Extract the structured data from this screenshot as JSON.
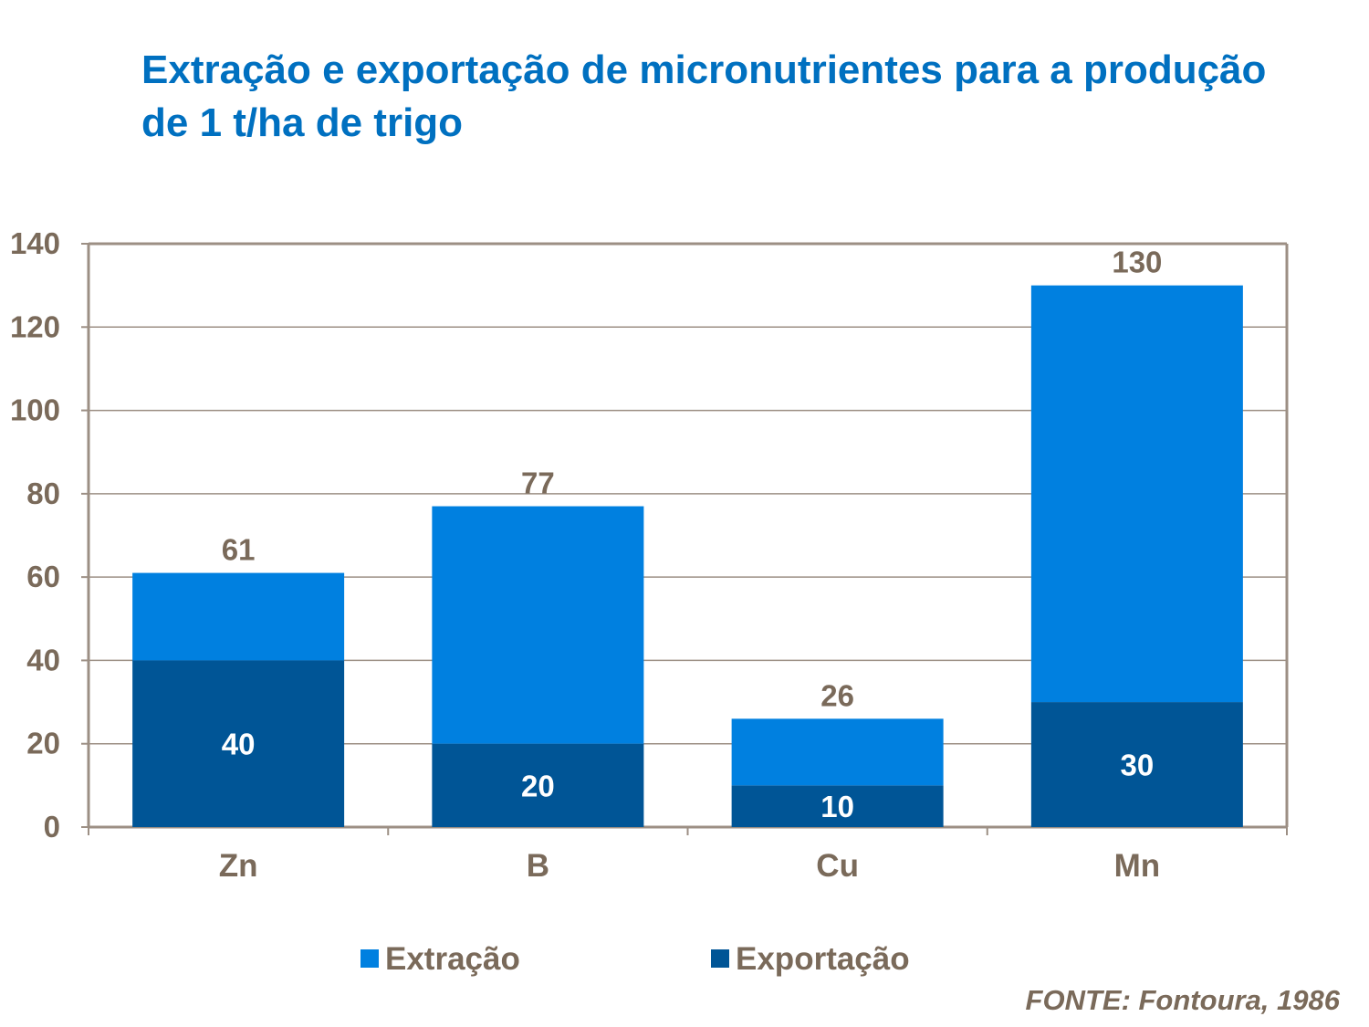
{
  "title": "Extração e exportação de micronutrientes para a produção de 1 t/ha de trigo",
  "source": "FONTE: Fontoura, 1986",
  "colors": {
    "extracao": "#0080e0",
    "exportacao": "#005596",
    "axis": "#9c8f84",
    "grid": "#9c8f84",
    "label_text": "#7a6a5a",
    "inner_label": "#ffffff"
  },
  "chart_data": {
    "type": "bar",
    "stacked": true,
    "categories": [
      "Zn",
      "B",
      "Cu",
      "Mn"
    ],
    "series": [
      {
        "name": "Exportação",
        "values": [
          40,
          20,
          10,
          30
        ]
      },
      {
        "name": "Extração",
        "values": [
          21,
          57,
          16,
          100
        ]
      }
    ],
    "totals": [
      61,
      77,
      26,
      130
    ],
    "title": "Extração e exportação de micronutrientes para a produção de 1 t/ha de trigo",
    "xlabel": "",
    "ylabel": "",
    "ylim": [
      0,
      140
    ],
    "yticks": [
      0,
      20,
      40,
      60,
      80,
      100,
      120,
      140
    ],
    "grid": true,
    "legend": [
      "Extração",
      "Exportação"
    ],
    "legend_position": "bottom"
  }
}
